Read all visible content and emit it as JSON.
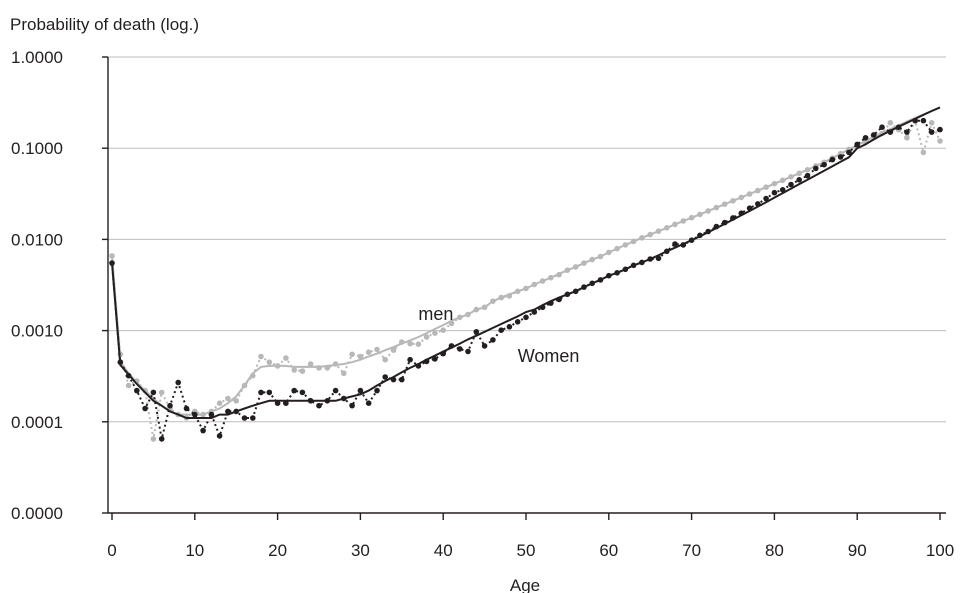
{
  "chart_data": {
    "type": "line",
    "title": "Probability of death (log.)",
    "xlabel": "Age",
    "ylabel": "Probability of death (log.)",
    "y_scale": "log",
    "xlim": [
      0,
      100
    ],
    "ylim": [
      1e-05,
      1.0
    ],
    "x_ticks": [
      0,
      10,
      20,
      30,
      40,
      50,
      60,
      70,
      80,
      90,
      100
    ],
    "x_tick_labels": [
      "0",
      "10",
      "20",
      "30",
      "40",
      "50",
      "60",
      "70",
      "80",
      "90",
      "100"
    ],
    "y_ticks": [
      1e-05,
      0.0001,
      0.001,
      0.01,
      0.1,
      1.0
    ],
    "y_tick_labels": [
      "0.0000",
      "0.0001",
      "0.0010",
      "0.0100",
      "0.1000",
      "1.0000"
    ],
    "grid": "horizontal",
    "legend": "none",
    "annotations": [
      {
        "text": "men",
        "x": 37,
        "y": 0.0013
      },
      {
        "text": "Women",
        "x": 49,
        "y": 0.00045
      }
    ],
    "series": [
      {
        "name": "men",
        "kind": "observed",
        "color": "#b8b8b8",
        "x": [
          0,
          1,
          2,
          3,
          4,
          5,
          6,
          7,
          8,
          9,
          10,
          11,
          12,
          13,
          14,
          15,
          16,
          17,
          18,
          19,
          20,
          21,
          22,
          23,
          24,
          25,
          26,
          27,
          28,
          29,
          30,
          31,
          32,
          33,
          34,
          35,
          36,
          37,
          38,
          39,
          40,
          41,
          42,
          43,
          44,
          45,
          46,
          47,
          48,
          49,
          50,
          51,
          52,
          53,
          54,
          55,
          56,
          57,
          58,
          59,
          60,
          61,
          62,
          63,
          64,
          65,
          66,
          67,
          68,
          69,
          70,
          71,
          72,
          73,
          74,
          75,
          76,
          77,
          78,
          79,
          80,
          81,
          82,
          83,
          84,
          85,
          86,
          87,
          88,
          89,
          90,
          91,
          92,
          93,
          94,
          95,
          96,
          97,
          98,
          99,
          100
        ],
        "y": [
          0.0066,
          0.00055,
          0.00025,
          0.00028,
          0.00022,
          6.5e-05,
          0.00021,
          0.00014,
          0.00012,
          0.00011,
          0.00013,
          0.00012,
          0.00013,
          0.00016,
          0.00018,
          0.00017,
          0.00025,
          0.00032,
          0.00052,
          0.00045,
          0.00041,
          0.0005,
          0.00037,
          0.00036,
          0.00043,
          0.00039,
          0.00039,
          0.00043,
          0.00034,
          0.00055,
          0.00052,
          0.00058,
          0.00062,
          0.00048,
          0.00061,
          0.00075,
          0.00072,
          0.00071,
          0.00085,
          0.00094,
          0.00101,
          0.0012,
          0.0014,
          0.0015,
          0.0017,
          0.0018,
          0.0021,
          0.0023,
          0.0024,
          0.0027,
          0.0029,
          0.0032,
          0.0035,
          0.0038,
          0.0041,
          0.0046,
          0.005,
          0.0055,
          0.006,
          0.0065,
          0.0072,
          0.0079,
          0.0087,
          0.0095,
          0.0104,
          0.0113,
          0.0123,
          0.0134,
          0.0146,
          0.0159,
          0.0173,
          0.0188,
          0.0205,
          0.0223,
          0.0243,
          0.0265,
          0.0289,
          0.0315,
          0.0343,
          0.0374,
          0.0408,
          0.0445,
          0.0486,
          0.053,
          0.058,
          0.064,
          0.07,
          0.078,
          0.087,
          0.097,
          0.108,
          0.118,
          0.13,
          0.145,
          0.19,
          0.16,
          0.13,
          0.2,
          0.09,
          0.19,
          0.12
        ]
      },
      {
        "name": "men",
        "kind": "smoothed",
        "color": "#b8b8b8",
        "x": [
          0,
          1,
          2,
          3,
          4,
          5,
          6,
          7,
          8,
          9,
          10,
          11,
          12,
          13,
          14,
          15,
          16,
          17,
          18,
          19,
          20,
          21,
          22,
          23,
          24,
          25,
          26,
          27,
          28,
          29,
          30,
          31,
          32,
          33,
          34,
          35,
          36,
          37,
          38,
          39,
          40,
          41,
          42,
          43,
          44,
          45,
          46,
          47,
          48,
          49,
          50,
          51,
          52,
          53,
          54,
          55,
          56,
          57,
          58,
          59,
          60,
          61,
          62,
          63,
          64,
          65,
          66,
          67,
          68,
          69,
          70,
          71,
          72,
          73,
          74,
          75,
          76,
          77,
          78,
          79,
          80,
          81,
          82,
          83,
          84,
          85,
          86,
          87,
          88,
          89,
          90,
          91,
          92,
          93,
          94,
          95,
          96,
          97,
          98,
          99,
          100
        ],
        "y": [
          0.0066,
          0.00046,
          0.00034,
          0.00027,
          0.00022,
          0.00018,
          0.00015,
          0.00013,
          0.00012,
          0.00012,
          0.00012,
          0.00012,
          0.00013,
          0.00014,
          0.00016,
          0.00019,
          0.00025,
          0.00034,
          0.0004,
          0.00041,
          0.00041,
          0.00041,
          0.0004,
          0.0004,
          0.0004,
          0.0004,
          0.00041,
          0.00042,
          0.00043,
          0.00045,
          0.00048,
          0.00052,
          0.00056,
          0.00061,
          0.00066,
          0.00072,
          0.00078,
          0.00085,
          0.00094,
          0.00104,
          0.00115,
          0.00128,
          0.0014,
          0.0015,
          0.0017,
          0.0018,
          0.0021,
          0.0023,
          0.0025,
          0.0027,
          0.0029,
          0.0032,
          0.0035,
          0.0038,
          0.0042,
          0.0046,
          0.005,
          0.0055,
          0.006,
          0.0065,
          0.0072,
          0.0079,
          0.0087,
          0.0095,
          0.0104,
          0.0113,
          0.0123,
          0.0134,
          0.0146,
          0.0159,
          0.0173,
          0.0188,
          0.0205,
          0.0223,
          0.0243,
          0.0265,
          0.0289,
          0.0315,
          0.0343,
          0.0374,
          0.0408,
          0.0445,
          0.0486,
          0.053,
          0.058,
          0.064,
          0.07,
          0.078,
          0.087,
          0.097,
          0.108,
          0.12,
          0.133,
          0.147,
          0.162,
          0.178,
          0.196,
          0.215,
          0.235,
          0.256,
          0.28
        ]
      },
      {
        "name": "Women",
        "kind": "observed",
        "color": "#231f20",
        "x": [
          0,
          1,
          2,
          3,
          4,
          5,
          6,
          7,
          8,
          9,
          10,
          11,
          12,
          13,
          14,
          15,
          16,
          17,
          18,
          19,
          20,
          21,
          22,
          23,
          24,
          25,
          26,
          27,
          28,
          29,
          30,
          31,
          32,
          33,
          34,
          35,
          36,
          37,
          38,
          39,
          40,
          41,
          42,
          43,
          44,
          45,
          46,
          47,
          48,
          49,
          50,
          51,
          52,
          53,
          54,
          55,
          56,
          57,
          58,
          59,
          60,
          61,
          62,
          63,
          64,
          65,
          66,
          67,
          68,
          69,
          70,
          71,
          72,
          73,
          74,
          75,
          76,
          77,
          78,
          79,
          80,
          81,
          82,
          83,
          84,
          85,
          86,
          87,
          88,
          89,
          90,
          91,
          92,
          93,
          94,
          95,
          96,
          97,
          98,
          99,
          100
        ],
        "y": [
          0.0055,
          0.00045,
          0.00032,
          0.00022,
          0.00014,
          0.00021,
          6.5e-05,
          0.00015,
          0.00027,
          0.00014,
          0.00012,
          8e-05,
          0.00012,
          7e-05,
          0.00013,
          0.00013,
          0.00011,
          0.00011,
          0.00021,
          0.00021,
          0.00016,
          0.00016,
          0.00022,
          0.00021,
          0.00017,
          0.00015,
          0.00017,
          0.00022,
          0.00018,
          0.00015,
          0.00022,
          0.00016,
          0.00022,
          0.00031,
          0.00029,
          0.00029,
          0.00048,
          0.00041,
          0.00046,
          0.00049,
          0.00056,
          0.00068,
          0.00063,
          0.00059,
          0.00097,
          0.00068,
          0.00079,
          0.00101,
          0.0011,
          0.00125,
          0.0014,
          0.0016,
          0.0018,
          0.002,
          0.0022,
          0.0025,
          0.0027,
          0.003,
          0.0033,
          0.0036,
          0.004,
          0.0043,
          0.0047,
          0.0052,
          0.0056,
          0.0061,
          0.0062,
          0.0074,
          0.0089,
          0.0087,
          0.0098,
          0.0111,
          0.0122,
          0.0138,
          0.0153,
          0.0172,
          0.0194,
          0.022,
          0.0245,
          0.028,
          0.0325,
          0.035,
          0.04,
          0.045,
          0.05,
          0.06,
          0.066,
          0.075,
          0.08,
          0.09,
          0.11,
          0.13,
          0.14,
          0.17,
          0.15,
          0.17,
          0.15,
          0.2,
          0.2,
          0.15,
          0.16
        ]
      },
      {
        "name": "Women",
        "kind": "smoothed",
        "color": "#231f20",
        "x": [
          0,
          1,
          2,
          3,
          4,
          5,
          6,
          7,
          8,
          9,
          10,
          11,
          12,
          13,
          14,
          15,
          16,
          17,
          18,
          19,
          20,
          21,
          22,
          23,
          24,
          25,
          26,
          27,
          28,
          29,
          30,
          31,
          32,
          33,
          34,
          35,
          36,
          37,
          38,
          39,
          40,
          41,
          42,
          43,
          44,
          45,
          46,
          47,
          48,
          49,
          50,
          51,
          52,
          53,
          54,
          55,
          56,
          57,
          58,
          59,
          60,
          61,
          62,
          63,
          64,
          65,
          66,
          67,
          68,
          69,
          70,
          71,
          72,
          73,
          74,
          75,
          76,
          77,
          78,
          79,
          80,
          81,
          82,
          83,
          84,
          85,
          86,
          87,
          88,
          89,
          90,
          91,
          92,
          93,
          94,
          95,
          96,
          97,
          98,
          99,
          100
        ],
        "y": [
          0.0055,
          0.00042,
          0.00033,
          0.00026,
          0.00021,
          0.00017,
          0.00015,
          0.00013,
          0.00012,
          0.00011,
          0.00011,
          0.00011,
          0.00011,
          0.00012,
          0.00012,
          0.00013,
          0.00014,
          0.00015,
          0.00016,
          0.00017,
          0.00017,
          0.00017,
          0.00017,
          0.00017,
          0.00017,
          0.00017,
          0.00017,
          0.00017,
          0.00018,
          0.00019,
          0.0002,
          0.00022,
          0.00025,
          0.00028,
          0.00031,
          0.00035,
          0.00039,
          0.00043,
          0.00048,
          0.00053,
          0.00059,
          0.00065,
          0.00072,
          0.0008,
          0.00088,
          0.00097,
          0.00107,
          0.00118,
          0.0013,
          0.00143,
          0.0016,
          0.0017,
          0.0019,
          0.0021,
          0.0023,
          0.0025,
          0.0027,
          0.003,
          0.0033,
          0.0036,
          0.004,
          0.0043,
          0.0047,
          0.0052,
          0.0056,
          0.0061,
          0.0067,
          0.0074,
          0.0081,
          0.0089,
          0.0098,
          0.0108,
          0.012,
          0.0133,
          0.0148,
          0.0165,
          0.0184,
          0.0205,
          0.0229,
          0.0256,
          0.0287,
          0.0322,
          0.0361,
          0.0404,
          0.0452,
          0.0506,
          0.0566,
          0.0633,
          0.0709,
          0.0794,
          0.1,
          0.11,
          0.125,
          0.14,
          0.155,
          0.172,
          0.19,
          0.21,
          0.232,
          0.256,
          0.28
        ]
      }
    ]
  }
}
